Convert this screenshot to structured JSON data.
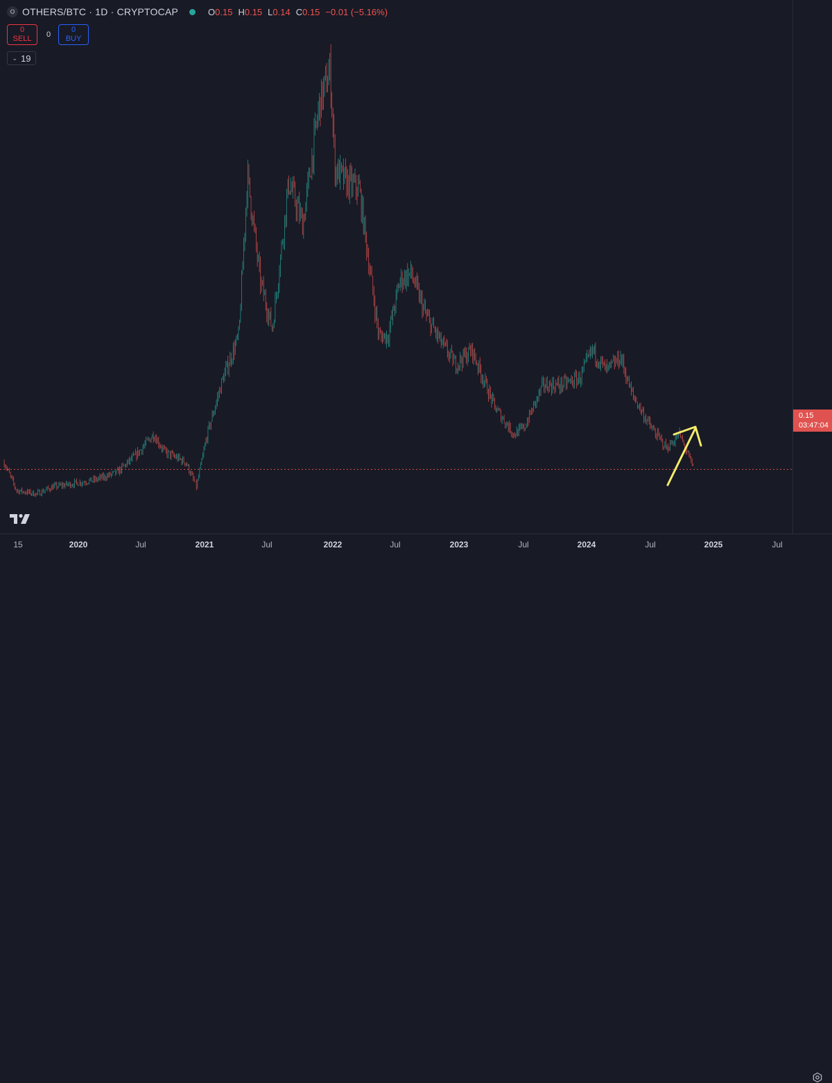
{
  "header": {
    "symbol_icon": "O",
    "symbol_title": "OTHERS/BTC · 1D · CRYPTOCAP",
    "status_color": "#26a69a",
    "ohlc": {
      "o_label": "O",
      "o_value": "0.15",
      "h_label": "H",
      "h_value": "0.15",
      "l_label": "L",
      "l_value": "0.14",
      "c_label": "C",
      "c_value": "0.15",
      "change": "−0.01 (−5.16%)"
    }
  },
  "trade": {
    "sell_value": "0",
    "sell_label": "SELL",
    "spread": "0",
    "buy_value": "0",
    "buy_label": "BUY"
  },
  "indicators_toggle": {
    "icon": "chevron-down-icon",
    "count": "19"
  },
  "price_axis": {
    "last_price": "0.15",
    "countdown": "03:47:04"
  },
  "time_axis": {
    "labels": [
      "15",
      "2020",
      "Jul",
      "2021",
      "Jul",
      "2022",
      "Jul",
      "2023",
      "Jul",
      "2024",
      "Jul",
      "2025",
      "Jul"
    ]
  },
  "colors": {
    "background": "#181a25",
    "up": "#26a69a",
    "down": "#ef5350",
    "annotation_arrow": "#f5eb6c",
    "last_price": "#e0524f"
  },
  "chart_data": {
    "type": "line",
    "title": "OTHERS/BTC · 1D · CRYPTOCAP",
    "x": [
      "2019-06-15",
      "2019-07-20",
      "2019-09-15",
      "2019-11-01",
      "2020-01-01",
      "2020-03-01",
      "2020-05-01",
      "2020-06-25",
      "2020-08-15",
      "2020-09-15",
      "2020-11-15",
      "2020-12-15",
      "2021-01-15",
      "2021-03-01",
      "2021-04-15",
      "2021-05-10",
      "2021-06-15",
      "2021-07-20",
      "2021-09-05",
      "2021-10-15",
      "2021-12-01",
      "2022-01-01",
      "2022-01-15",
      "2022-02-15",
      "2022-03-25",
      "2022-04-15",
      "2022-05-20",
      "2022-06-15",
      "2022-07-20",
      "2022-08-20",
      "2022-10-01",
      "2022-11-15",
      "2022-12-25",
      "2023-02-10",
      "2023-04-15",
      "2023-06-10",
      "2023-07-10",
      "2023-09-01",
      "2023-10-20",
      "2023-12-15",
      "2024-01-20",
      "2024-03-01",
      "2024-04-10",
      "2024-05-10",
      "2024-07-05",
      "2024-08-20",
      "2024-09-25",
      "2024-11-05"
    ],
    "values": [
      0.16,
      0.12,
      0.115,
      0.125,
      0.13,
      0.135,
      0.145,
      0.17,
      0.2,
      0.175,
      0.16,
      0.125,
      0.2,
      0.28,
      0.34,
      0.57,
      0.42,
      0.35,
      0.56,
      0.5,
      0.67,
      0.72,
      0.58,
      0.56,
      0.55,
      0.47,
      0.34,
      0.34,
      0.42,
      0.43,
      0.37,
      0.33,
      0.3,
      0.32,
      0.24,
      0.2,
      0.21,
      0.27,
      0.27,
      0.28,
      0.32,
      0.29,
      0.31,
      0.26,
      0.21,
      0.18,
      0.2,
      0.15
    ],
    "ylim": [
      0.1,
      0.78
    ],
    "xlabel": "",
    "ylabel": "",
    "grid": false,
    "legend": "none",
    "last_value": 0.15
  }
}
